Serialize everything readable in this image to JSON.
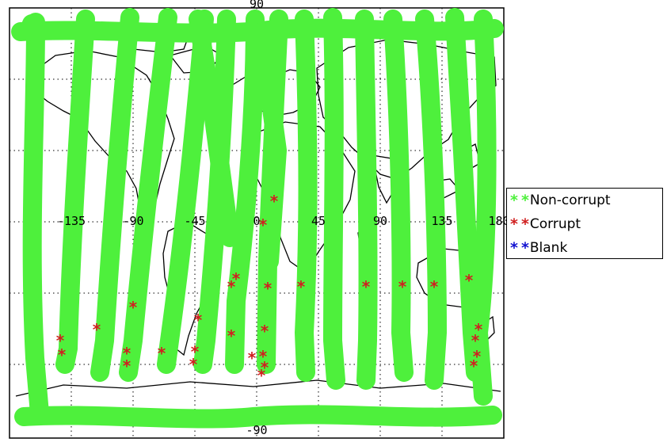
{
  "map": {
    "top_label": "90",
    "bottom_label": "-90",
    "lon_labels": [
      "-135",
      "-90",
      "-45",
      "0",
      "45",
      "90",
      "135",
      "180"
    ]
  },
  "legend": {
    "items": [
      {
        "label": "Non-corrupt",
        "symbol": "*",
        "color": "#4ef03c"
      },
      {
        "label": "Corrupt",
        "symbol": "*",
        "color": "#d02020"
      },
      {
        "label": "Blank",
        "symbol": "*",
        "color": "#1010d0"
      }
    ]
  },
  "colors": {
    "swath": "#4ef03c",
    "corrupt": "#d02020",
    "coastline": "#000000",
    "grid": "#000000"
  }
}
